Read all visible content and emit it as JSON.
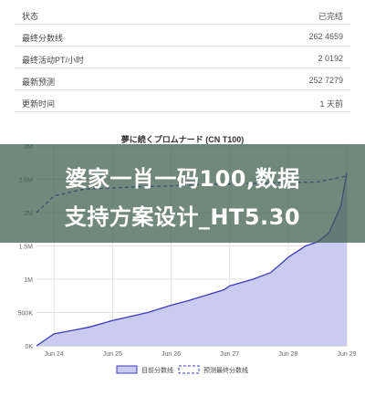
{
  "table": {
    "rows": [
      {
        "label": "状态",
        "value": "已完结"
      },
      {
        "label": "最终分数线",
        "value": "262 4659"
      },
      {
        "label": "最终活动PT/小时",
        "value": "2 0192"
      },
      {
        "label": "最新预测",
        "value": "252 7279"
      },
      {
        "label": "更新时间",
        "value": "1 天前"
      }
    ]
  },
  "banner": {
    "line1": "婆家一肖一码100,数据",
    "line2": "支持方案设计_HT5.30"
  },
  "chart_data": {
    "type": "area",
    "title": "夢に続くプロムナード (CN T100)",
    "x_ticks": [
      "Jun 24",
      "Jun 25",
      "Jun 26",
      "Jun 27",
      "Jun 28",
      "Jun 29"
    ],
    "y_ticks": [
      "0K",
      "500K",
      "1M",
      "1.5M",
      "2M",
      "2.5M",
      "3M"
    ],
    "ylim": [
      0,
      3000000
    ],
    "xlim": [
      23.7,
      29.0
    ],
    "series": [
      {
        "name": "目前分数线",
        "x": [
          23.7,
          24.0,
          24.3,
          24.6,
          25.0,
          25.3,
          25.6,
          26.0,
          26.3,
          26.6,
          26.9,
          27.0,
          27.4,
          27.7,
          27.9,
          28.0,
          28.3,
          28.5,
          28.7,
          28.9,
          29.0
        ],
        "y": [
          0,
          180000,
          230000,
          280000,
          380000,
          440000,
          500000,
          610000,
          680000,
          760000,
          840000,
          900000,
          1000000,
          1100000,
          1250000,
          1330000,
          1500000,
          1560000,
          1700000,
          2100000,
          2600000
        ],
        "color": "#3d3dbb",
        "fill": "#c9cbf0"
      },
      {
        "name": "预测最终分数线",
        "x": [
          23.7,
          24.0,
          24.5,
          25.0,
          25.5,
          26.0,
          26.5,
          27.0,
          27.5,
          28.0,
          28.5,
          29.0
        ],
        "y": [
          2000000,
          2250000,
          2350000,
          2370000,
          2390000,
          2400000,
          2420000,
          2430000,
          2440000,
          2450000,
          2460000,
          2550000
        ],
        "color": "#3d3dbb",
        "dashed": true
      }
    ],
    "legend_position": "bottom",
    "grid": true
  }
}
